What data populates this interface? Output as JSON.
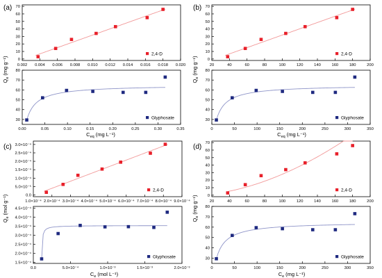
{
  "panels": [
    {
      "label": "(a)",
      "ylabel_main": "Q",
      "ylabel_sub": "e",
      "ylabel_unit": "(mg g⁻¹)",
      "xlabel_main": "C",
      "xlabel_sub": "eq",
      "xlabel_unit": "(mg L⁻¹)"
    },
    {
      "label": "(b)",
      "ylabel_main": "Q",
      "ylabel_sub": "e",
      "ylabel_unit": "(mg g⁻¹)",
      "xlabel_main": "C",
      "xlabel_sub": "eq",
      "xlabel_unit": "(mg L⁻¹)"
    },
    {
      "label": "(c)",
      "ylabel_main": "Q",
      "ylabel_sub": "e",
      "ylabel_unit": "(mol g⁻¹)",
      "xlabel_main": "C",
      "xlabel_sub": "e",
      "xlabel_unit": "(mol L⁻¹)"
    },
    {
      "label": "(d)",
      "ylabel_main": "Q",
      "ylabel_sub": "e",
      "ylabel_unit": "(mg g⁻¹)",
      "xlabel_main": "C",
      "xlabel_sub": "e",
      "xlabel_unit": "(mg L⁻¹)"
    }
  ],
  "chart_data": [
    {
      "type": "scatter",
      "panel": "(a)",
      "plot": "top",
      "series": [
        {
          "name": "2,4-D",
          "color": "#e8202a",
          "marker": "square",
          "x": [
            0.0038,
            0.0058,
            0.0076,
            0.0104,
            0.0126,
            0.0162,
            0.018
          ],
          "y": [
            3,
            14,
            26,
            34,
            43,
            55,
            66
          ],
          "fit": "linear"
        }
      ],
      "xlim": [
        0.002,
        0.02
      ],
      "xticks": [
        "0.002",
        "0.004",
        "0.006",
        "0.008",
        "0.010",
        "0.012",
        "0.014",
        "0.016",
        "0.018",
        "0.020"
      ],
      "ylim": [
        -2,
        72
      ],
      "yticks": [
        "0",
        "10",
        "20",
        "30",
        "40",
        "50",
        "60",
        "70"
      ],
      "legend": "bottom-right"
    },
    {
      "type": "scatter",
      "panel": "(a)",
      "plot": "bottom",
      "series": [
        {
          "name": "Glyphosate",
          "color": "#1f2a80",
          "marker": "square",
          "x": [
            0.01,
            0.045,
            0.098,
            0.156,
            0.223,
            0.273,
            0.316
          ],
          "y": [
            29.5,
            52,
            59.5,
            58.5,
            57.5,
            57.5,
            73
          ],
          "fit": "langmuir"
        }
      ],
      "xlim": [
        0.0,
        0.35
      ],
      "xticks": [
        "0.00",
        "0.05",
        "0.10",
        "0.15",
        "0.20",
        "0.25",
        "0.30",
        "0.35"
      ],
      "ylim": [
        25,
        80
      ],
      "yticks": [
        "30",
        "40",
        "50",
        "60",
        "70",
        "80"
      ],
      "legend": "bottom-right"
    },
    {
      "type": "scatter",
      "panel": "(b)",
      "plot": "top",
      "series": [
        {
          "name": "2,4-D",
          "color": "#e8202a",
          "marker": "square",
          "x": [
            38,
            58,
            76,
            104,
            126,
            162,
            180
          ],
          "y": [
            3,
            14,
            26,
            34,
            43,
            55,
            66
          ],
          "fit": "linear"
        }
      ],
      "xlim": [
        20,
        200
      ],
      "xticks": [
        "20",
        "40",
        "60",
        "80",
        "100",
        "120",
        "140",
        "160",
        "180",
        "200"
      ],
      "ylim": [
        -2,
        72
      ],
      "yticks": [
        "0",
        "10",
        "20",
        "30",
        "40",
        "50",
        "60",
        "70"
      ],
      "legend": "bottom-right"
    },
    {
      "type": "scatter",
      "panel": "(b)",
      "plot": "bottom",
      "series": [
        {
          "name": "Glyphosate",
          "color": "#1f2a80",
          "marker": "square",
          "x": [
            10,
            45,
            98,
            156,
            223,
            273,
            316
          ],
          "y": [
            29.5,
            52,
            59.5,
            58.5,
            57.5,
            57.5,
            73
          ],
          "fit": "langmuir"
        }
      ],
      "xlim": [
        0,
        350
      ],
      "xticks": [
        "0",
        "50",
        "100",
        "150",
        "200",
        "250",
        "300",
        "350"
      ],
      "ylim": [
        25,
        80
      ],
      "yticks": [
        "30",
        "40",
        "50",
        "60",
        "70",
        "80"
      ],
      "legend": "bottom-right"
    },
    {
      "type": "scatter",
      "panel": "(c)",
      "plot": "top",
      "series": [
        {
          "name": "2,4-D",
          "color": "#e8202a",
          "marker": "square",
          "x": [
            0.00017,
            0.00026,
            0.00034,
            0.00047,
            0.00057,
            0.00073,
            0.00081
          ],
          "y": [
            1.6e-05,
            6.3e-05,
            0.000117,
            0.000154,
            0.000195,
            0.000248,
            0.000301
          ],
          "fit": "linear"
        }
      ],
      "xlim": [
        0.0001,
        0.0009
      ],
      "xticks": [
        "1.0×10⁻⁴",
        "2.0×10⁻⁴",
        "3.0×10⁻⁴",
        "4.0×10⁻⁴",
        "5.0×10⁻⁴",
        "6.0×10⁻⁴",
        "7.0×10⁻⁴",
        "8.0×10⁻⁴",
        "9.0×10⁻⁴"
      ],
      "ylim": [
        -1e-05,
        0.00032
      ],
      "yticks": [
        "0.0",
        "5.0×10⁻⁵",
        "1.0×10⁻⁴",
        "1.5×10⁻⁴",
        "2.0×10⁻⁴",
        "2.5×10⁻⁴",
        "3.0×10⁻⁴"
      ],
      "legend": "bottom-right"
    },
    {
      "type": "scatter",
      "panel": "(c)",
      "plot": "bottom",
      "series": [
        {
          "name": "Glyphosate",
          "color": "#1f2a80",
          "marker": "square",
          "x": [
            4e-06,
            0.00025,
            0.00058,
            0.00095,
            0.0013,
            0.00168,
            0.00188
          ],
          "y": [
            0.00017,
            0.00031,
            0.000355,
            0.000347,
            0.000348,
            0.000344,
            0.000428
          ],
          "fit": "langmuir"
        }
      ],
      "xlim": [
        -0.00012,
        0.0021
      ],
      "xticks": [
        "0.0",
        "5.0×10⁻⁴",
        "1.0×10⁻³",
        "1.5×10⁻³",
        "2.0×10⁻³"
      ],
      "ylim": [
        0.000145,
        0.00046
      ],
      "yticks": [
        "1.5×10⁻⁴",
        "2.0×10⁻⁴",
        "2.5×10⁻⁴",
        "3.0×10⁻⁴",
        "3.5×10⁻⁴",
        "4.0×10⁻⁴",
        "4.5×10⁻⁴"
      ],
      "legend": "bottom-right"
    },
    {
      "type": "scatter",
      "panel": "(d)",
      "plot": "top",
      "series": [
        {
          "name": "2,4-D",
          "color": "#e8202a",
          "marker": "square",
          "x": [
            38,
            58,
            76,
            104,
            126,
            162,
            180
          ],
          "y": [
            3,
            14,
            26,
            34,
            43,
            55,
            66
          ],
          "fit": "freundlich"
        }
      ],
      "xlim": [
        20,
        200
      ],
      "xticks": [
        "20",
        "40",
        "60",
        "80",
        "100",
        "120",
        "140",
        "160",
        "180",
        "200"
      ],
      "ylim": [
        -2,
        72
      ],
      "yticks": [
        "0",
        "10",
        "20",
        "30",
        "40",
        "50",
        "60",
        "70"
      ],
      "legend": "bottom-right"
    },
    {
      "type": "scatter",
      "panel": "(d)",
      "plot": "bottom",
      "series": [
        {
          "name": "Glyphosate",
          "color": "#1f2a80",
          "marker": "square",
          "x": [
            10,
            45,
            98,
            156,
            223,
            273,
            316
          ],
          "y": [
            29.5,
            52,
            59.5,
            58.5,
            57.5,
            57.5,
            73
          ],
          "fit": "langmuir"
        }
      ],
      "xlim": [
        0,
        350
      ],
      "xticks": [
        "0",
        "50",
        "100",
        "150",
        "200",
        "250",
        "300",
        "350"
      ],
      "ylim": [
        25,
        80
      ],
      "yticks": [
        "30",
        "40",
        "50",
        "60",
        "70",
        "80"
      ],
      "legend": "bottom-right"
    }
  ]
}
